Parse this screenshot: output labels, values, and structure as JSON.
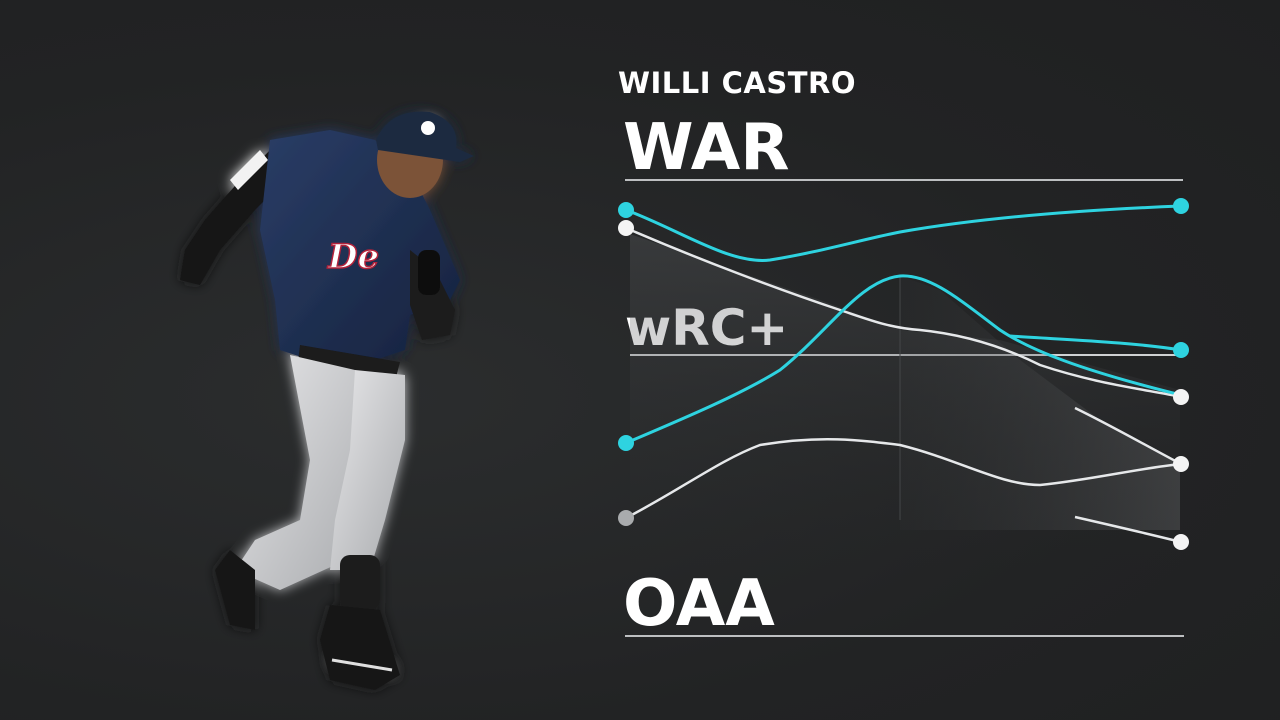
{
  "player": {
    "name": "WILLI CASTRO",
    "jersey_text": "De"
  },
  "stats": {
    "war_label": "WAR",
    "wrc_label": "wRC+",
    "oaa_label": "OAA"
  },
  "colors": {
    "background": "#232526",
    "accent_cyan": "#2ed3e0",
    "line_white": "#e6e8ea",
    "uniform_navy": "#1e2f52"
  }
}
